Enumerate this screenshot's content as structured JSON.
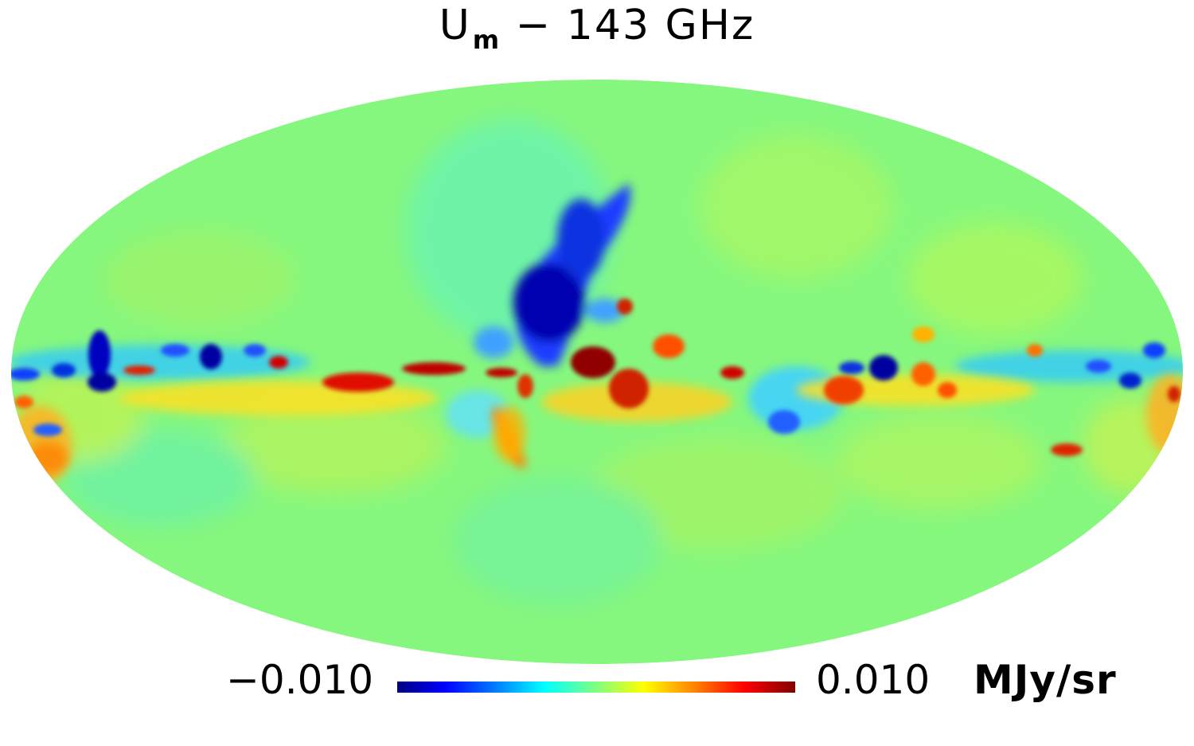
{
  "title": {
    "main": "U",
    "subscript": "m",
    "rest": " − 143 GHz"
  },
  "colorbar": {
    "min_label": "−0.010",
    "max_label": "0.010",
    "unit": "MJy/sr",
    "min": -0.01,
    "max": 0.01,
    "colormap": "jet"
  },
  "colors": {
    "background_field": "#80ff80",
    "deep_blue": "#000080",
    "blue": "#0000ff",
    "cyan": "#00ffff",
    "yellow": "#ffff00",
    "orange": "#ff8000",
    "red": "#ff0000",
    "dark_red": "#800000"
  }
}
